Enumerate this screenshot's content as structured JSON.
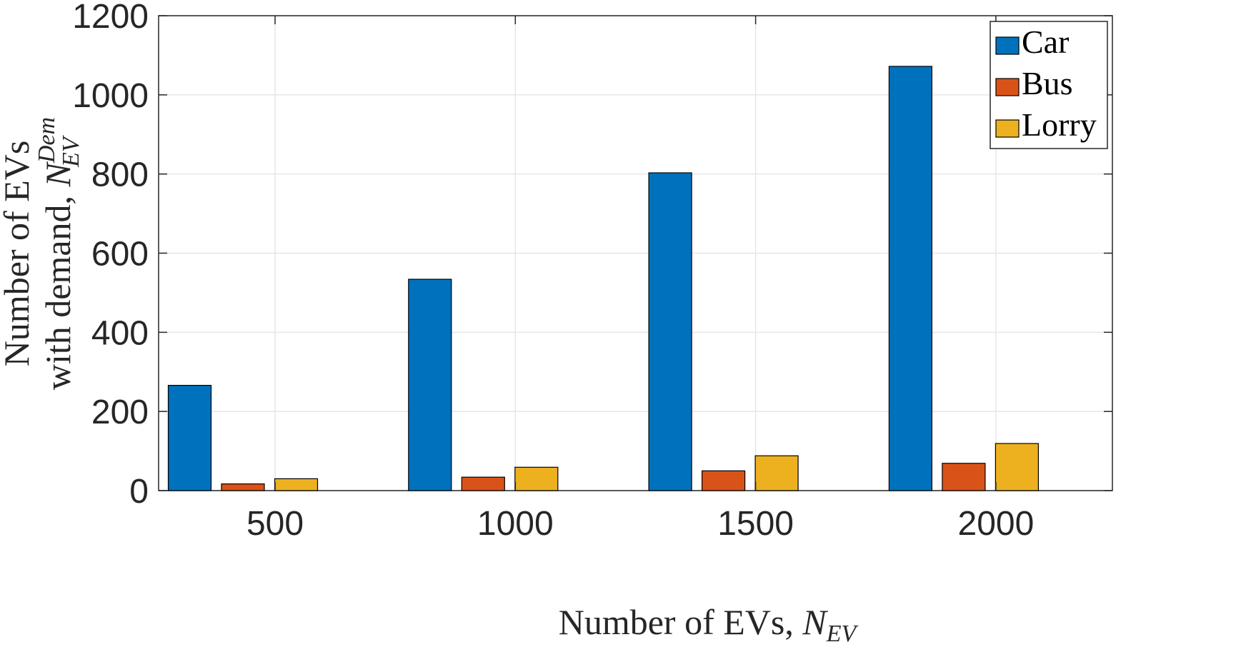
{
  "chart_data": {
    "type": "bar",
    "categories": [
      "500",
      "1000",
      "1500",
      "2000"
    ],
    "series": [
      {
        "name": "Car",
        "color": "#0072BD",
        "values": [
          266,
          534,
          803,
          1072
        ]
      },
      {
        "name": "Bus",
        "color": "#D95319",
        "values": [
          17,
          34,
          50,
          69
        ]
      },
      {
        "name": "Lorry",
        "color": "#EDB120",
        "values": [
          30,
          59,
          88,
          119
        ]
      }
    ],
    "ylim": [
      0,
      1200
    ],
    "yticks": [
      0,
      200,
      400,
      600,
      800,
      1000,
      1200
    ],
    "xlabel": {
      "text": "Number of EVs, ",
      "symbol": "N",
      "subscript": "EV"
    },
    "ylabel": {
      "line1": "Number of EVs",
      "line2": "with demand, ",
      "symbol": "N",
      "subscript": "EV",
      "superscript": "Dem"
    },
    "grid": true,
    "legend_position": "top-right"
  }
}
